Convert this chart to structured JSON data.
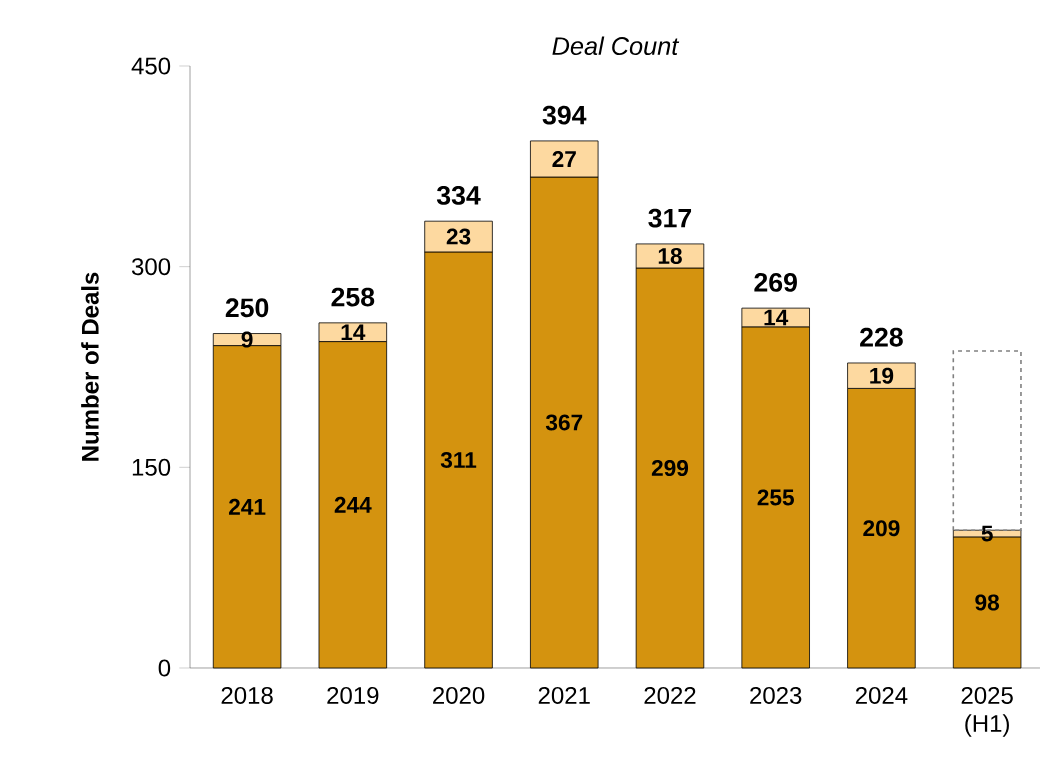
{
  "chart_data": {
    "type": "bar",
    "stacked": true,
    "title": "Deal Count",
    "ylabel": "Number of Deals",
    "categories": [
      "2018",
      "2019",
      "2020",
      "2021",
      "2022",
      "2023",
      "2024",
      "2025 (H1)"
    ],
    "series": [
      {
        "color": "#d4930f",
        "values": [
          241,
          244,
          311,
          367,
          299,
          255,
          209,
          98
        ],
        "value_labels": [
          "241",
          "244",
          "311",
          "367",
          "299",
          "255",
          "209",
          "98"
        ]
      },
      {
        "color": "#fdd9a0",
        "values": [
          9,
          14,
          23,
          27,
          18,
          14,
          19,
          5
        ],
        "value_labels": [
          "9",
          "14",
          "23",
          "27",
          "18",
          "14",
          "19",
          "5"
        ]
      },
      {
        "color": "#808080",
        "line_style": "dashed",
        "values": [
          null,
          null,
          null,
          null,
          null,
          null,
          null,
          134
        ]
      }
    ],
    "totals": [
      "250",
      "258",
      "334",
      "394",
      "317",
      "269",
      "228",
      null
    ],
    "ylim": [
      0,
      450
    ],
    "yticks": [
      0,
      150,
      300,
      450
    ],
    "grid": false
  }
}
